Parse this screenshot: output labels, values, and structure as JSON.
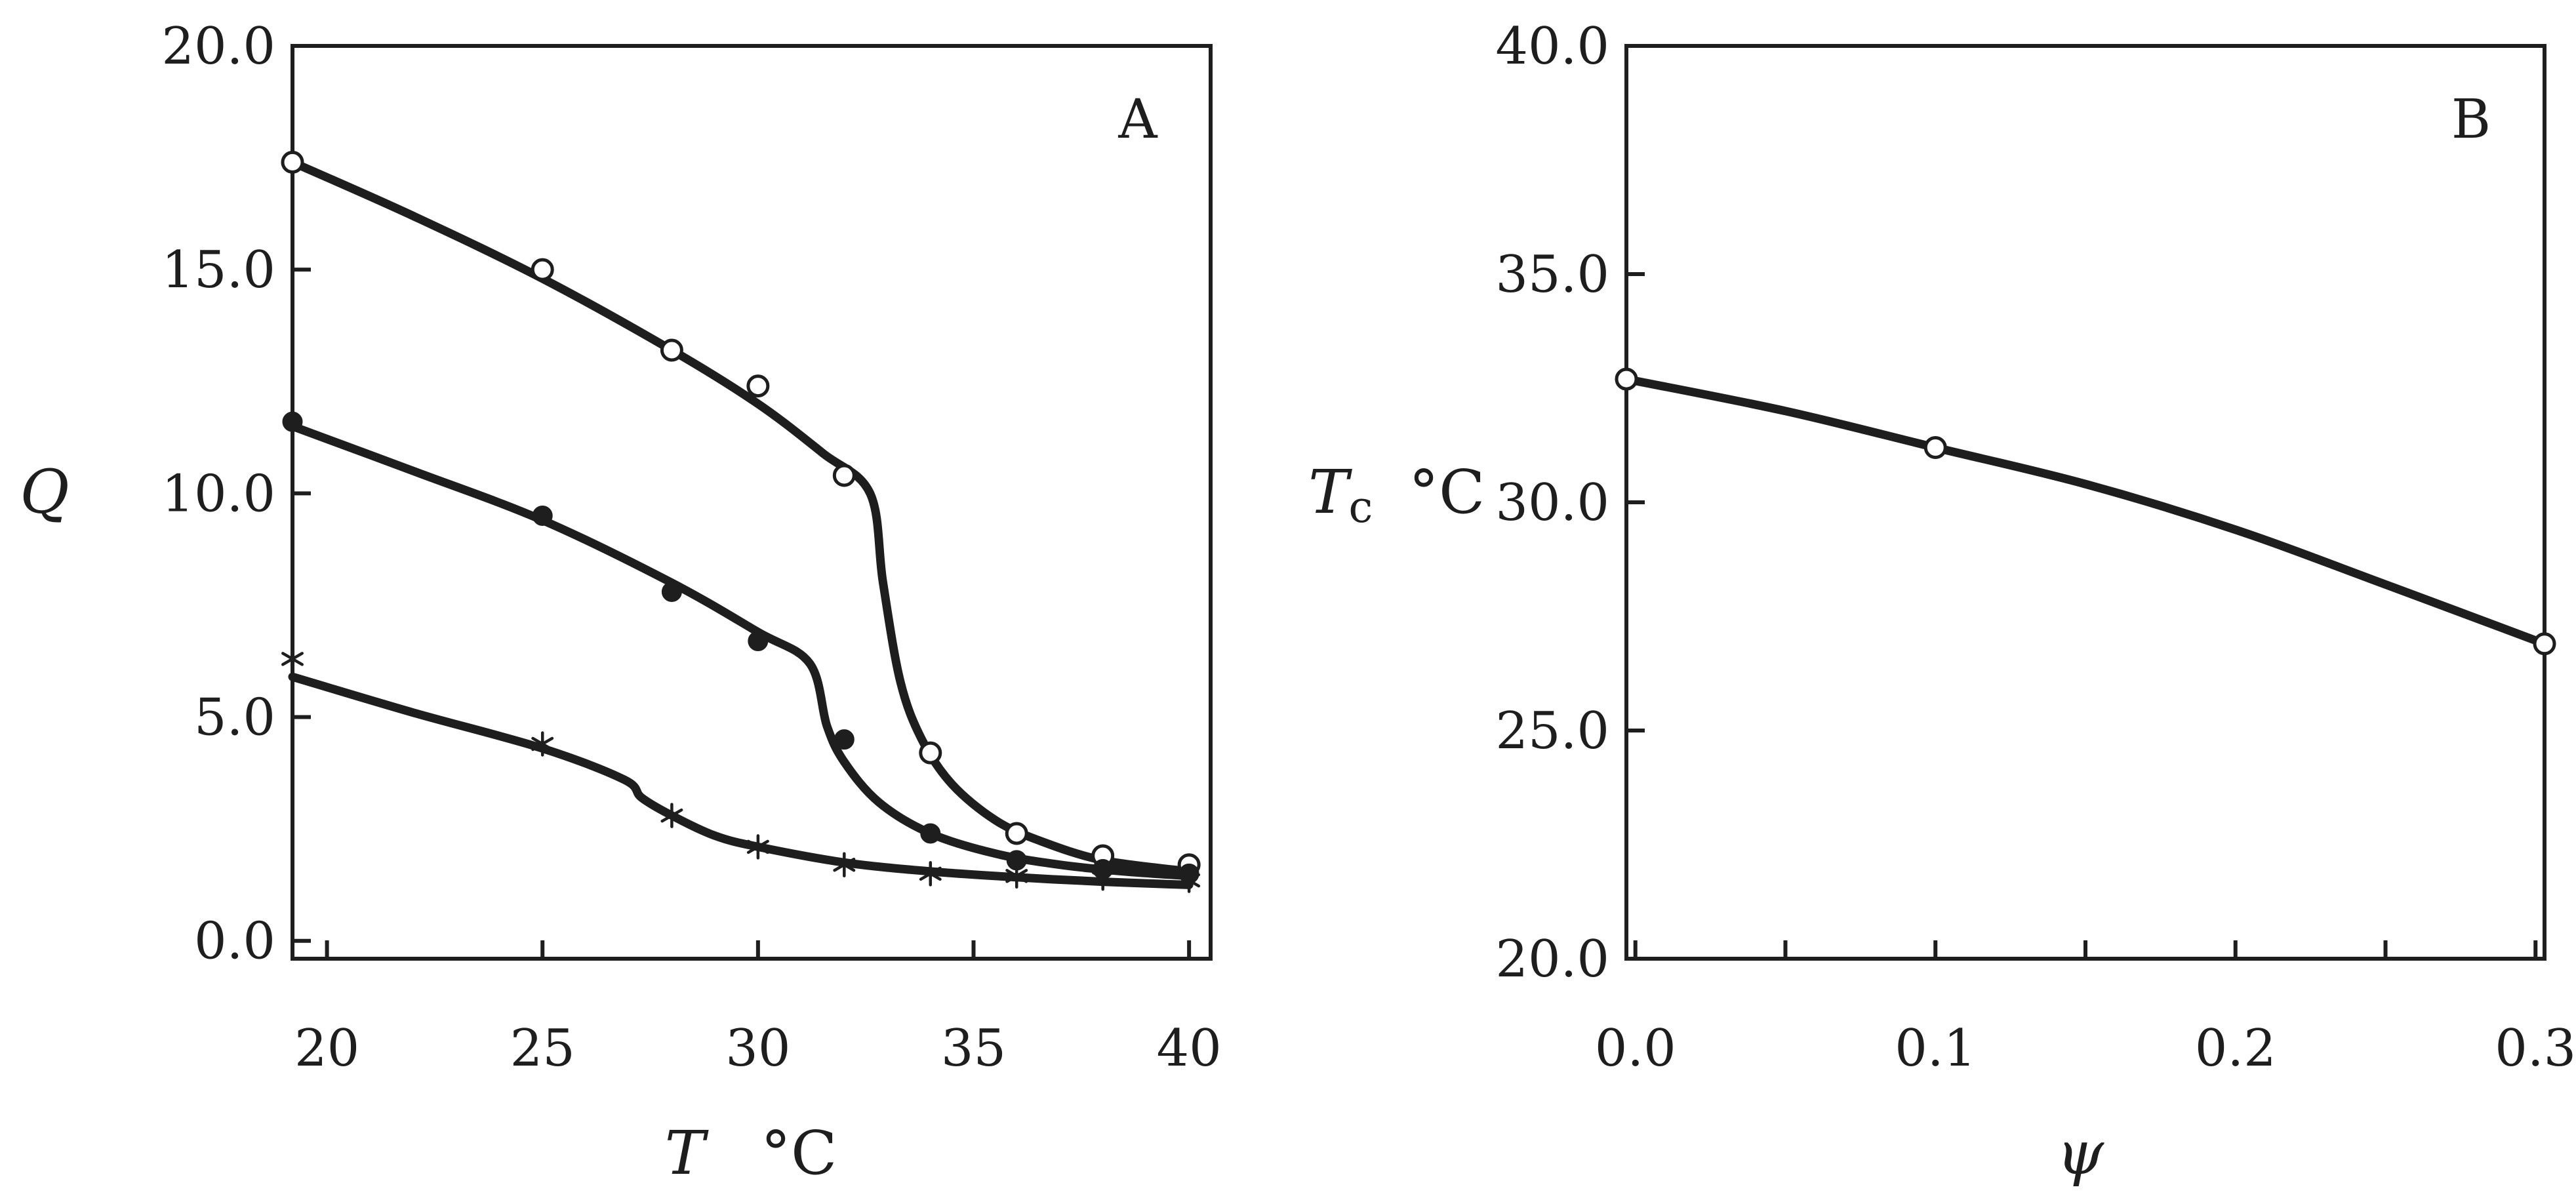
{
  "chart_data": [
    {
      "panel": "A",
      "type": "line",
      "xlabel": "T",
      "xunit": "°C",
      "ylabel": "Q",
      "xlim": [
        19.2,
        40.5
      ],
      "ylim": [
        -0.4,
        20.0
      ],
      "x_ticks": [
        20,
        25,
        30,
        35,
        40
      ],
      "x_tick_labels": [
        "20",
        "25",
        "30",
        "35",
        "40"
      ],
      "y_ticks": [
        0,
        5,
        10,
        15,
        20
      ],
      "y_tick_labels": [
        "0.0",
        "5.0",
        "10.0",
        "15.0",
        "20.0"
      ],
      "series": [
        {
          "name": "open circles",
          "marker": "open-circle",
          "points": [
            [
              19.2,
              17.4
            ],
            [
              25,
              15.0
            ],
            [
              28,
              13.2
            ],
            [
              30,
              12.4
            ],
            [
              32,
              10.4
            ],
            [
              34,
              4.2
            ],
            [
              36,
              2.4
            ],
            [
              38,
              1.9
            ],
            [
              40,
              1.7
            ]
          ],
          "fit": [
            [
              19.2,
              17.4
            ],
            [
              22,
              16.2
            ],
            [
              25,
              14.8
            ],
            [
              28,
              13.2
            ],
            [
              30,
              12.0
            ],
            [
              31.5,
              10.9
            ],
            [
              32.6,
              10.0
            ],
            [
              32.9,
              8.0
            ],
            [
              33.3,
              5.8
            ],
            [
              33.8,
              4.5
            ],
            [
              34.5,
              3.5
            ],
            [
              35.5,
              2.7
            ],
            [
              36.5,
              2.25
            ],
            [
              38,
              1.8
            ],
            [
              40,
              1.55
            ]
          ]
        },
        {
          "name": "filled circles",
          "marker": "filled-circle",
          "points": [
            [
              19.2,
              11.6
            ],
            [
              25,
              9.5
            ],
            [
              28,
              7.8
            ],
            [
              30,
              6.7
            ],
            [
              32,
              4.5
            ],
            [
              34,
              2.4
            ],
            [
              36,
              1.8
            ],
            [
              38,
              1.6
            ],
            [
              40,
              1.5
            ]
          ],
          "fit": [
            [
              19.2,
              11.5
            ],
            [
              22,
              10.5
            ],
            [
              25,
              9.4
            ],
            [
              28,
              8.0
            ],
            [
              30,
              6.9
            ],
            [
              31.2,
              6.2
            ],
            [
              31.6,
              4.8
            ],
            [
              32,
              4.0
            ],
            [
              32.8,
              3.1
            ],
            [
              34,
              2.4
            ],
            [
              35.5,
              1.95
            ],
            [
              37,
              1.7
            ],
            [
              38.5,
              1.55
            ],
            [
              40,
              1.45
            ]
          ]
        },
        {
          "name": "stars",
          "marker": "star",
          "points": [
            [
              19.2,
              6.3
            ],
            [
              25,
              4.4
            ],
            [
              28,
              2.8
            ],
            [
              30,
              2.1
            ],
            [
              32,
              1.7
            ],
            [
              34,
              1.5
            ],
            [
              36,
              1.45
            ],
            [
              38,
              1.4
            ],
            [
              40,
              1.35
            ]
          ],
          "fit": [
            [
              19.2,
              5.9
            ],
            [
              22,
              5.1
            ],
            [
              25,
              4.3
            ],
            [
              26.9,
              3.6
            ],
            [
              27.3,
              3.2
            ],
            [
              28,
              2.8
            ],
            [
              29,
              2.35
            ],
            [
              30,
              2.1
            ],
            [
              32,
              1.75
            ],
            [
              34,
              1.55
            ],
            [
              36,
              1.42
            ],
            [
              38,
              1.32
            ],
            [
              40,
              1.25
            ]
          ]
        }
      ]
    },
    {
      "panel": "B",
      "type": "line",
      "xlabel": "ψ",
      "ylabel": "T",
      "ylabel_sub": "c",
      "yunit": "°C",
      "xlim": [
        -0.003,
        0.303
      ],
      "ylim": [
        20.0,
        40.0
      ],
      "x_ticks": [
        0,
        0.05,
        0.1,
        0.15,
        0.2,
        0.25,
        0.3
      ],
      "x_tick_labels": [
        "0.0",
        "",
        "0.1",
        "",
        "0.2",
        "",
        "0.3"
      ],
      "y_ticks": [
        20,
        25,
        30,
        35,
        40
      ],
      "y_tick_labels": [
        "20.0",
        "25.0",
        "30.0",
        "35.0",
        "40.0"
      ],
      "series": [
        {
          "name": "Tc vs psi",
          "marker": "open-circle",
          "points": [
            [
              -0.003,
              32.7
            ],
            [
              0.1,
              31.2
            ],
            [
              0.303,
              26.9
            ]
          ],
          "fit": [
            [
              -0.003,
              32.7
            ],
            [
              0.05,
              32.0
            ],
            [
              0.1,
              31.2
            ],
            [
              0.15,
              30.4
            ],
            [
              0.2,
              29.4
            ],
            [
              0.25,
              28.2
            ],
            [
              0.303,
              26.9
            ]
          ]
        }
      ]
    }
  ]
}
